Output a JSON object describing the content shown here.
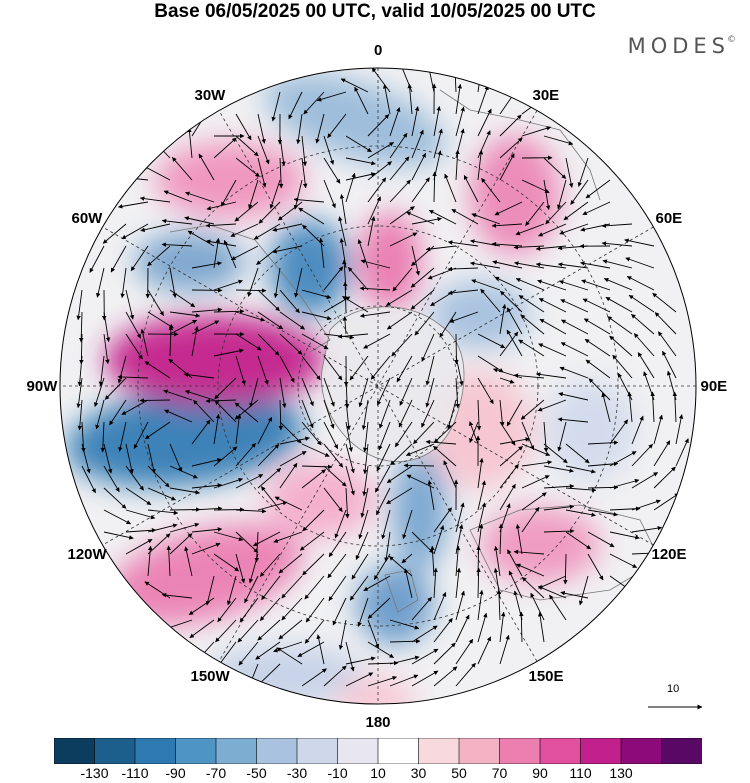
{
  "title": "Base 06/05/2025 00 UTC, valid 10/05/2025 00 UTC",
  "brand": {
    "name": "MODES",
    "mark": "©"
  },
  "longitude_labels": [
    {
      "text": "0",
      "lon": 0
    },
    {
      "text": "30E",
      "lon": 30
    },
    {
      "text": "60E",
      "lon": 60
    },
    {
      "text": "90E",
      "lon": 90
    },
    {
      "text": "120E",
      "lon": 120
    },
    {
      "text": "150E",
      "lon": 150
    },
    {
      "text": "180",
      "lon": 180
    },
    {
      "text": "150W",
      "lon": -150
    },
    {
      "text": "120W",
      "lon": -120
    },
    {
      "text": "90W",
      "lon": -90
    },
    {
      "text": "60W",
      "lon": -60
    },
    {
      "text": "30W",
      "lon": -30
    }
  ],
  "vector_reference": {
    "label": "10"
  },
  "colorbar": {
    "ticks": [
      "-130",
      "-110",
      "-90",
      "-70",
      "-50",
      "-30",
      "-10",
      "10",
      "30",
      "50",
      "70",
      "90",
      "110",
      "130"
    ],
    "colors": [
      "#0d3d5e",
      "#1c5f8c",
      "#2e7ab0",
      "#4e94c4",
      "#7eadd2",
      "#a8c2df",
      "#cfd8ea",
      "#e8e6f0",
      "#ffffff",
      "#f8d9dd",
      "#f4b3c5",
      "#ec7fb0",
      "#e0509f",
      "#c2218d",
      "#8c0a79",
      "#5a0866"
    ]
  }
}
